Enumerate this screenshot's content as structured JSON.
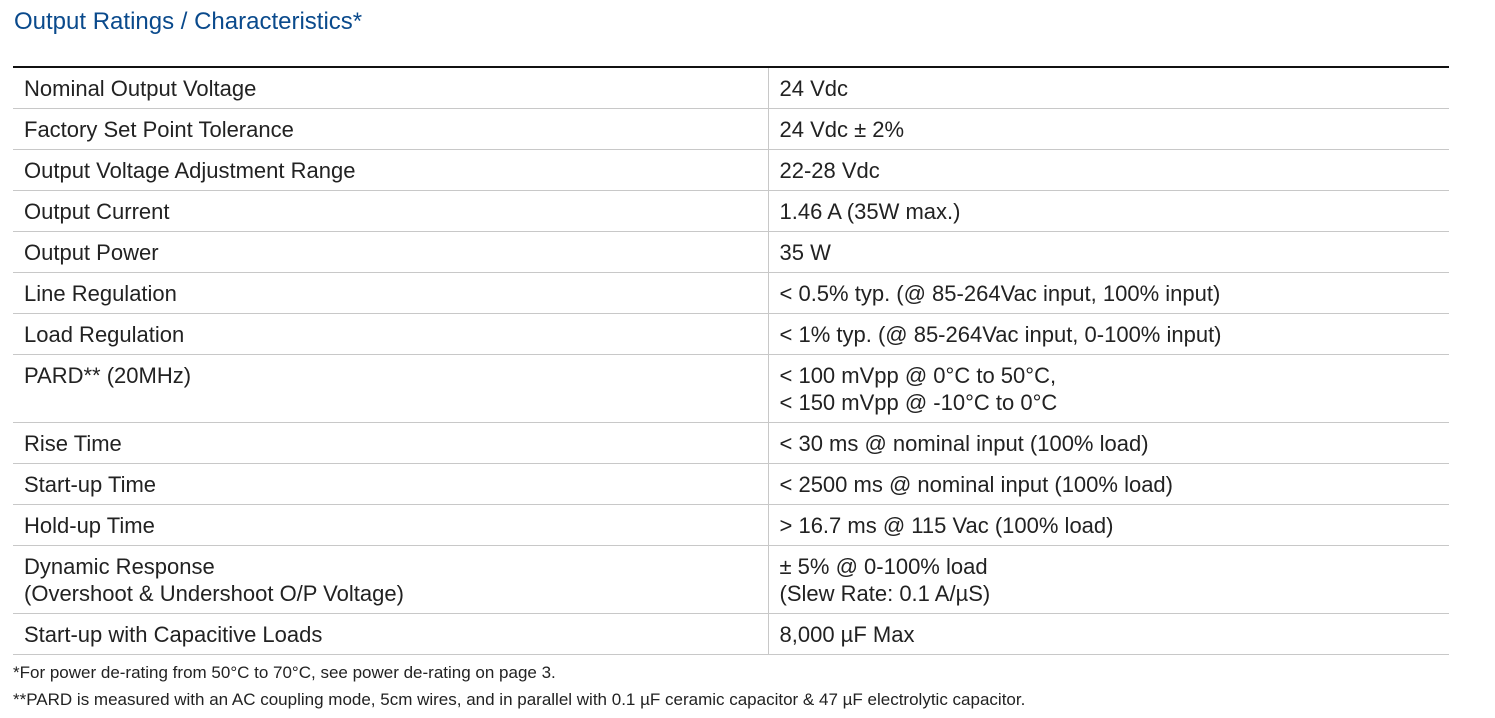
{
  "title": "Output Ratings / Characteristics*",
  "rows": [
    {
      "param": [
        "Nominal Output Voltage"
      ],
      "value": [
        "24 Vdc"
      ]
    },
    {
      "param": [
        "Factory Set Point Tolerance"
      ],
      "value": [
        "24 Vdc ± 2%"
      ]
    },
    {
      "param": [
        "Output Voltage Adjustment Range"
      ],
      "value": [
        "22-28 Vdc"
      ]
    },
    {
      "param": [
        "Output Current"
      ],
      "value": [
        "1.46 A (35W max.)"
      ]
    },
    {
      "param": [
        "Output Power"
      ],
      "value": [
        "35 W"
      ]
    },
    {
      "param": [
        "Line Regulation"
      ],
      "value": [
        "< 0.5% typ. (@ 85-264Vac input, 100% input)"
      ]
    },
    {
      "param": [
        "Load Regulation"
      ],
      "value": [
        "< 1% typ. (@ 85-264Vac input, 0-100% input)"
      ]
    },
    {
      "param": [
        "PARD** (20MHz)"
      ],
      "value": [
        "< 100 mVpp @ 0°C to 50°C,",
        "< 150 mVpp @ -10°C to 0°C"
      ]
    },
    {
      "param": [
        "Rise Time"
      ],
      "value": [
        "< 30 ms @ nominal input (100% load)"
      ]
    },
    {
      "param": [
        "Start-up Time"
      ],
      "value": [
        "< 2500 ms @ nominal input (100% load)"
      ]
    },
    {
      "param": [
        "Hold-up Time"
      ],
      "value": [
        "> 16.7 ms @ 115 Vac (100% load)"
      ]
    },
    {
      "param": [
        "Dynamic Response",
        "(Overshoot & Undershoot O/P Voltage)"
      ],
      "value": [
        "± 5% @ 0-100% load",
        "(Slew Rate: 0.1 A/µS)"
      ]
    },
    {
      "param": [
        "Start-up with Capacitive Loads"
      ],
      "value": [
        "8,000 µF Max"
      ]
    }
  ],
  "footnotes": [
    "*For power de-rating from 50°C to 70°C, see power de-rating on page 3.",
    "**PARD is measured with an AC coupling mode, 5cm wires, and in parallel with 0.1 µF ceramic capacitor & 47 µF electrolytic capacitor."
  ]
}
